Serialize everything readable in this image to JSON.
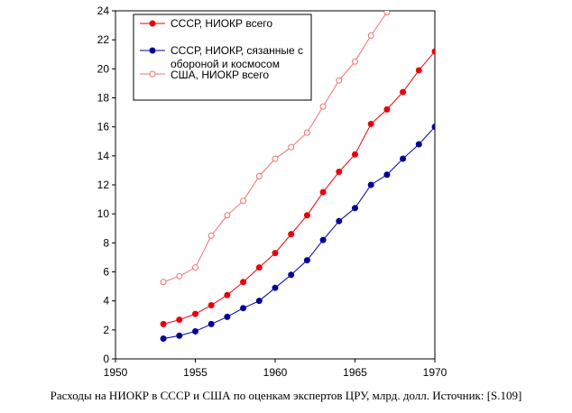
{
  "chart_data": {
    "type": "line",
    "title": "",
    "xlabel": "",
    "ylabel": "",
    "xlim": [
      1950,
      1970
    ],
    "ylim": [
      0,
      24
    ],
    "x_ticks": [
      1950,
      1955,
      1960,
      1965,
      1970
    ],
    "y_ticks": [
      0,
      2,
      4,
      6,
      8,
      10,
      12,
      14,
      16,
      18,
      20,
      22,
      24
    ],
    "grid": false,
    "legend_position": "top-left",
    "series": [
      {
        "name": "СССР, НИОКР всего",
        "color": "#e8000b",
        "marker": "filled",
        "x": [
          1953,
          1954,
          1955,
          1956,
          1957,
          1958,
          1959,
          1960,
          1961,
          1962,
          1963,
          1964,
          1965,
          1966,
          1967,
          1968,
          1969,
          1970
        ],
        "y": [
          2.4,
          2.7,
          3.1,
          3.7,
          4.4,
          5.3,
          6.3,
          7.3,
          8.6,
          9.9,
          11.5,
          12.9,
          14.1,
          16.2,
          17.2,
          18.4,
          19.9,
          21.2
        ]
      },
      {
        "name": "СССР, НИОКР, сязанные с обороной и космосом",
        "color": "#000099",
        "marker": "filled",
        "x": [
          1953,
          1954,
          1955,
          1956,
          1957,
          1958,
          1959,
          1960,
          1961,
          1962,
          1963,
          1964,
          1965,
          1966,
          1967,
          1968,
          1969,
          1970
        ],
        "y": [
          1.4,
          1.6,
          1.9,
          2.4,
          2.9,
          3.5,
          4.0,
          4.9,
          5.8,
          6.8,
          8.2,
          9.5,
          10.4,
          12.0,
          12.7,
          13.8,
          14.8,
          16.0
        ]
      },
      {
        "name": "США, НИОКР всего",
        "color": "#f0706f",
        "marker": "hollow",
        "x": [
          1953,
          1954,
          1955,
          1956,
          1957,
          1958,
          1959,
          1960,
          1961,
          1962,
          1963,
          1964,
          1965,
          1966,
          1967
        ],
        "y": [
          5.3,
          5.7,
          6.3,
          8.5,
          9.9,
          10.9,
          12.6,
          13.8,
          14.6,
          15.6,
          17.4,
          19.2,
          20.5,
          22.3,
          23.9
        ]
      }
    ],
    "caption": "Расходы на НИОКР в СССР и США по оценкам экспертов ЦРУ, млрд. долл. Источник: [S.109]"
  }
}
